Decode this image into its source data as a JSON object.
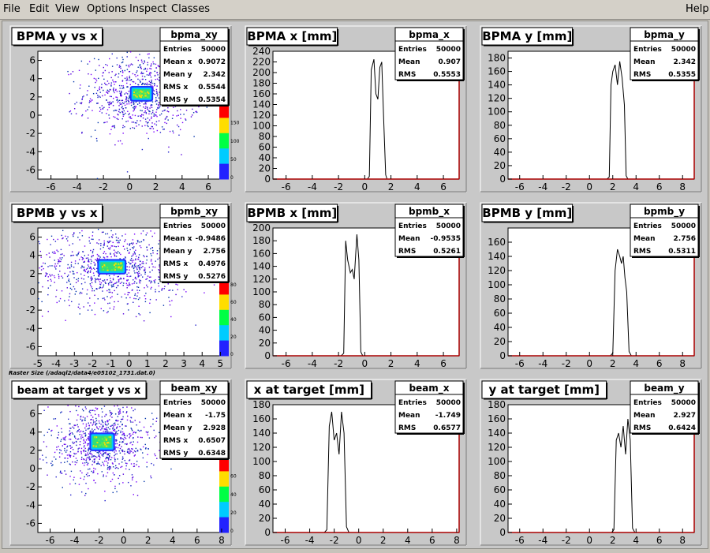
{
  "menubar": {
    "items": [
      "File",
      "Edit",
      "View",
      "Options",
      "Inspect",
      "Classes"
    ],
    "help": "Help"
  },
  "raster_caption": "Raster Size (/adaql2/data4/e05102_1731.dat.0)",
  "colors": {
    "pad_bg": "#c8c8c8",
    "frame_bg": "#ffffff",
    "axis_red": "#aa0000",
    "hist_line": "#000000"
  },
  "panels": [
    {
      "kind": "scatter",
      "title": "BPMA y vs x",
      "stats_name": "bpma_xy",
      "stats": [
        [
          "Entries",
          "50000"
        ],
        [
          "Mean x",
          "0.9072"
        ],
        [
          "Mean y",
          "2.342"
        ],
        [
          "RMS x",
          "0.5544"
        ],
        [
          "RMS y",
          "0.5354"
        ]
      ],
      "xlim": [
        -7,
        7.2
      ],
      "ylim": [
        -7,
        7
      ],
      "xticks": [
        -6,
        -4,
        -2,
        0,
        2,
        4,
        6
      ],
      "yticks": [
        -6,
        -4,
        -2,
        0,
        2,
        4,
        6
      ],
      "palette_ticks": [
        "150",
        "100",
        "50",
        "0"
      ],
      "chart_data": {
        "type": "heatmap",
        "center_x": 0.9072,
        "center_y": 2.342,
        "rms_x": 0.5544,
        "rms_y": 0.5354,
        "entries": 50000
      }
    },
    {
      "kind": "hist",
      "title": "BPMA x [mm]",
      "stats_name": "bpma_x",
      "stats": [
        [
          "Entries",
          "50000"
        ],
        [
          "Mean",
          "0.907"
        ],
        [
          "RMS",
          "0.5553"
        ]
      ],
      "xlim": [
        -7,
        7.2
      ],
      "ylim": [
        0,
        240
      ],
      "xticks": [
        -6,
        -4,
        -2,
        0,
        2,
        4,
        6
      ],
      "yticks": [
        0,
        20,
        40,
        60,
        80,
        100,
        120,
        140,
        160,
        180,
        200,
        220,
        240
      ],
      "chart_data": {
        "type": "line",
        "x": [
          -7,
          0.2,
          0.35,
          0.5,
          0.7,
          0.85,
          1.0,
          1.15,
          1.3,
          1.45,
          1.6,
          1.7,
          7.2
        ],
        "y": [
          0,
          0,
          5,
          205,
          225,
          160,
          150,
          210,
          220,
          110,
          8,
          0,
          0
        ]
      }
    },
    {
      "kind": "hist",
      "title": "BPMA y [mm]",
      "stats_name": "bpma_y",
      "stats": [
        [
          "Entries",
          "50000"
        ],
        [
          "Mean",
          "2.342"
        ],
        [
          "RMS",
          "0.5355"
        ]
      ],
      "xlim": [
        -7,
        9
      ],
      "ylim": [
        0,
        190
      ],
      "xticks": [
        -6,
        -4,
        -2,
        0,
        2,
        4,
        6,
        8
      ],
      "yticks": [
        0,
        20,
        40,
        60,
        80,
        100,
        120,
        140,
        160,
        180
      ],
      "chart_data": {
        "type": "line",
        "x": [
          -7,
          1.5,
          1.7,
          1.85,
          2.0,
          2.2,
          2.4,
          2.6,
          2.8,
          3.0,
          3.15,
          3.3,
          9
        ],
        "y": [
          0,
          0,
          3,
          140,
          160,
          170,
          140,
          175,
          150,
          110,
          5,
          0,
          0
        ]
      }
    },
    {
      "kind": "scatter",
      "title": "BPMB y vs x",
      "stats_name": "bpmb_xy",
      "stats": [
        [
          "Entries",
          "50000"
        ],
        [
          "Mean x",
          "-0.9486"
        ],
        [
          "Mean y",
          "2.756"
        ],
        [
          "RMS x",
          "0.4976"
        ],
        [
          "RMS y",
          "0.5276"
        ]
      ],
      "xlim": [
        -5,
        5.2
      ],
      "ylim": [
        -7,
        7
      ],
      "xticks": [
        -5,
        -4,
        -3,
        -2,
        -1,
        0,
        1,
        2,
        3,
        4,
        5
      ],
      "yticks": [
        -6,
        -4,
        -2,
        0,
        2,
        4,
        6
      ],
      "palette_ticks": [
        "80",
        "60",
        "40",
        "20",
        "0"
      ],
      "chart_data": {
        "type": "heatmap",
        "center_x": -0.9486,
        "center_y": 2.756,
        "rms_x": 0.4976,
        "rms_y": 0.5276,
        "entries": 50000
      }
    },
    {
      "kind": "hist",
      "title": "BPMB x [mm]",
      "stats_name": "bpmb_x",
      "stats": [
        [
          "Entries",
          "50000"
        ],
        [
          "Mean",
          "-0.9535"
        ],
        [
          "RMS",
          "0.5261"
        ]
      ],
      "xlim": [
        -7,
        7.2
      ],
      "ylim": [
        0,
        200
      ],
      "xticks": [
        -6,
        -4,
        -2,
        0,
        2,
        4,
        6
      ],
      "yticks": [
        0,
        20,
        40,
        60,
        80,
        100,
        120,
        140,
        160,
        180,
        200
      ],
      "chart_data": {
        "type": "line",
        "x": [
          -7,
          -1.8,
          -1.6,
          -1.45,
          -1.3,
          -1.1,
          -0.95,
          -0.8,
          -0.6,
          -0.45,
          -0.3,
          -0.15,
          7.2
        ],
        "y": [
          0,
          0,
          4,
          180,
          150,
          130,
          135,
          120,
          190,
          150,
          6,
          0,
          0
        ]
      }
    },
    {
      "kind": "hist",
      "title": "BPMB y [mm]",
      "stats_name": "bpmb_y",
      "stats": [
        [
          "Entries",
          "50000"
        ],
        [
          "Mean",
          "2.756"
        ],
        [
          "RMS",
          "0.5311"
        ]
      ],
      "xlim": [
        -7,
        9
      ],
      "ylim": [
        0,
        180
      ],
      "xticks": [
        -6,
        -4,
        -2,
        0,
        2,
        4,
        6,
        8
      ],
      "yticks": [
        0,
        20,
        40,
        60,
        80,
        100,
        120,
        140,
        160
      ],
      "chart_data": {
        "type": "line",
        "x": [
          -7,
          1.8,
          2.0,
          2.2,
          2.4,
          2.6,
          2.75,
          2.9,
          3.05,
          3.2,
          3.4,
          3.6,
          9
        ],
        "y": [
          0,
          0,
          4,
          120,
          150,
          140,
          130,
          140,
          110,
          90,
          6,
          0,
          0
        ]
      }
    },
    {
      "kind": "scatter",
      "title": "beam at target y vs x",
      "stats_name": "beam_xy",
      "stats": [
        [
          "Entries",
          "50000"
        ],
        [
          "Mean x",
          "-1.75"
        ],
        [
          "Mean y",
          "2.928"
        ],
        [
          "RMS x",
          "0.6507"
        ],
        [
          "RMS y",
          "0.6348"
        ]
      ],
      "xlim": [
        -7,
        8.2
      ],
      "ylim": [
        -7,
        7
      ],
      "xticks": [
        -6,
        -4,
        -2,
        0,
        2,
        4,
        6,
        8
      ],
      "yticks": [
        -6,
        -4,
        -2,
        0,
        2,
        4,
        6
      ],
      "palette_ticks": [
        "60",
        "40",
        "20",
        "0"
      ],
      "chart_data": {
        "type": "heatmap",
        "center_x": -1.75,
        "center_y": 2.928,
        "rms_x": 0.6507,
        "rms_y": 0.6348,
        "entries": 50000
      }
    },
    {
      "kind": "hist",
      "title": "x at target [mm]",
      "stats_name": "beam_x",
      "stats": [
        [
          "Entries",
          "50000"
        ],
        [
          "Mean",
          "-1.749"
        ],
        [
          "RMS",
          "0.6577"
        ]
      ],
      "xlim": [
        -7,
        8.2
      ],
      "ylim": [
        0,
        180
      ],
      "xticks": [
        -6,
        -4,
        -2,
        0,
        2,
        4,
        6,
        8
      ],
      "yticks": [
        0,
        20,
        40,
        60,
        80,
        100,
        120,
        140,
        160,
        180
      ],
      "chart_data": {
        "type": "line",
        "x": [
          -7,
          -2.8,
          -2.6,
          -2.4,
          -2.2,
          -2.0,
          -1.8,
          -1.6,
          -1.4,
          -1.2,
          -1.0,
          -0.8,
          8.2
        ],
        "y": [
          0,
          0,
          4,
          150,
          170,
          130,
          140,
          110,
          170,
          140,
          8,
          0,
          0
        ]
      }
    },
    {
      "kind": "hist",
      "title": "y at target [mm]",
      "stats_name": "beam_y",
      "stats": [
        [
          "Entries",
          "50000"
        ],
        [
          "Mean",
          "2.927"
        ],
        [
          "RMS",
          "0.6424"
        ]
      ],
      "xlim": [
        -7,
        9
      ],
      "ylim": [
        0,
        180
      ],
      "xticks": [
        -6,
        -4,
        -2,
        0,
        2,
        4,
        6,
        8
      ],
      "yticks": [
        0,
        20,
        40,
        60,
        80,
        100,
        120,
        140,
        160,
        180
      ],
      "chart_data": {
        "type": "line",
        "x": [
          -7,
          1.9,
          2.1,
          2.3,
          2.5,
          2.7,
          2.9,
          3.1,
          3.3,
          3.5,
          3.7,
          3.9,
          9
        ],
        "y": [
          0,
          0,
          4,
          130,
          140,
          120,
          150,
          110,
          160,
          130,
          6,
          0,
          0
        ]
      }
    }
  ]
}
